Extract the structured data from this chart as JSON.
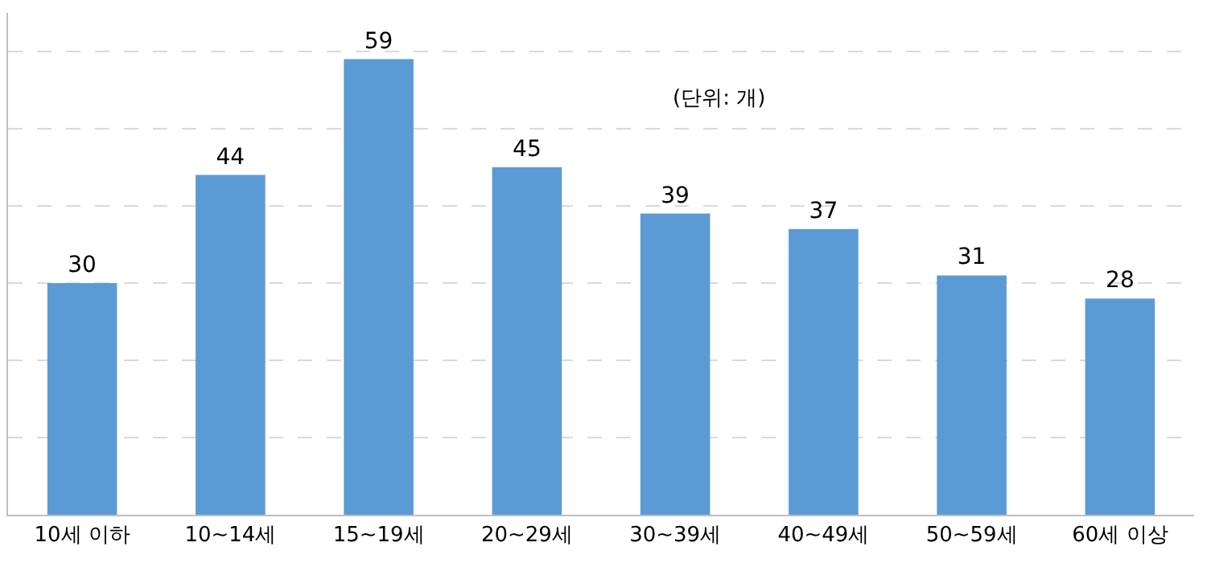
{
  "chart_data": {
    "type": "bar",
    "categories": [
      "10세 이하",
      "10~14세",
      "15~19세",
      "20~29세",
      "30~39세",
      "40~49세",
      "50~59세",
      "60세 이상"
    ],
    "values": [
      30,
      44,
      59,
      45,
      39,
      37,
      31,
      28
    ],
    "color": "#5b9bd5",
    "data_labels": true,
    "ylim": [
      0,
      65
    ],
    "yticks": [
      {
        "value": 0,
        "label": null
      },
      {
        "value": 10,
        "label": null
      },
      {
        "value": 20,
        "label": null
      },
      {
        "value": 30,
        "label": null
      },
      {
        "value": 40,
        "label": null
      },
      {
        "value": 50,
        "label": null
      },
      {
        "value": 60,
        "label": null
      }
    ],
    "tick_labels": "x",
    "grid": "y",
    "annotations": [
      "(단위: 개)"
    ]
  }
}
